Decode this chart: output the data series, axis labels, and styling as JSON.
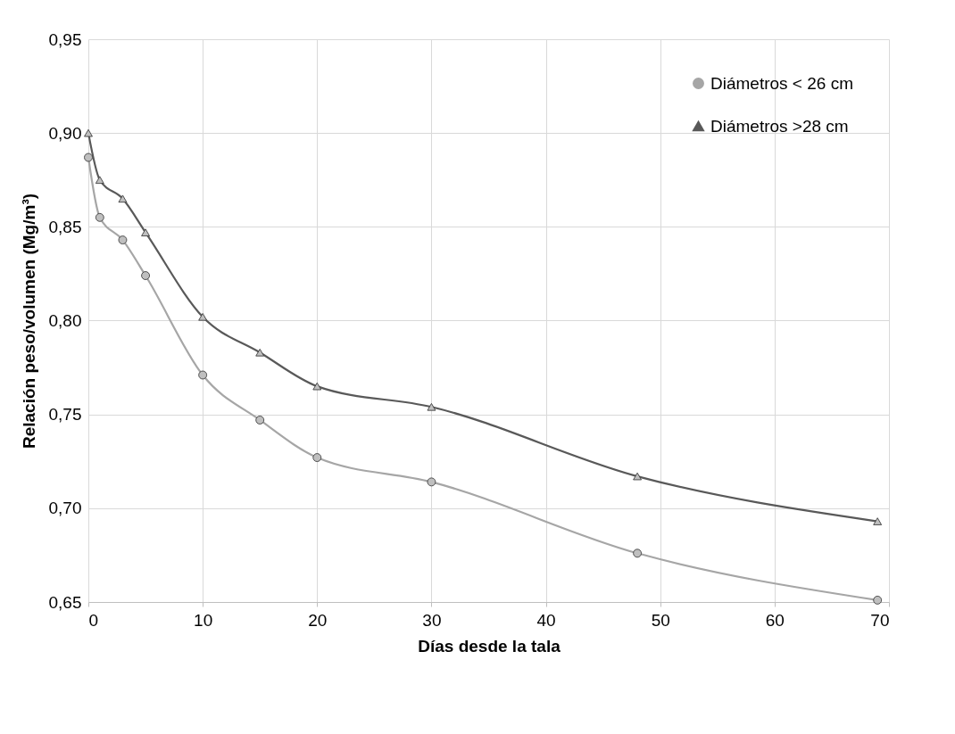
{
  "chart_data": {
    "type": "line",
    "xlabel": "Días desde la tala",
    "ylabel": "Relación peso/volumen (Mg/m³)",
    "x": [
      0,
      1,
      3,
      5,
      10,
      15,
      20,
      30,
      48,
      69
    ],
    "series": [
      {
        "name": "Diámetros < 26 cm",
        "color": "#a6a6a6",
        "marker": "circle",
        "values": [
          0.887,
          0.855,
          0.843,
          0.824,
          0.771,
          0.747,
          0.727,
          0.714,
          0.676,
          0.651
        ]
      },
      {
        "name": "Diámetros >28 cm",
        "color": "#595959",
        "marker": "triangle",
        "values": [
          0.9,
          0.875,
          0.865,
          0.847,
          0.802,
          0.783,
          0.765,
          0.754,
          0.717,
          0.693
        ]
      }
    ],
    "xlim": [
      0,
      70
    ],
    "xticks": [
      0,
      10,
      20,
      30,
      40,
      50,
      60,
      70
    ],
    "ylim": [
      0.65,
      0.95
    ],
    "yticks": [
      {
        "value": 0.65,
        "label": "0,65"
      },
      {
        "value": 0.7,
        "label": "0,70"
      },
      {
        "value": 0.75,
        "label": "0,75"
      },
      {
        "value": 0.8,
        "label": "0,80"
      },
      {
        "value": 0.85,
        "label": "0,85"
      },
      {
        "value": 0.9,
        "label": "0,90"
      },
      {
        "value": 0.95,
        "label": "0,95"
      }
    ],
    "grid": true,
    "legend": "top right",
    "line_style": "solid"
  }
}
